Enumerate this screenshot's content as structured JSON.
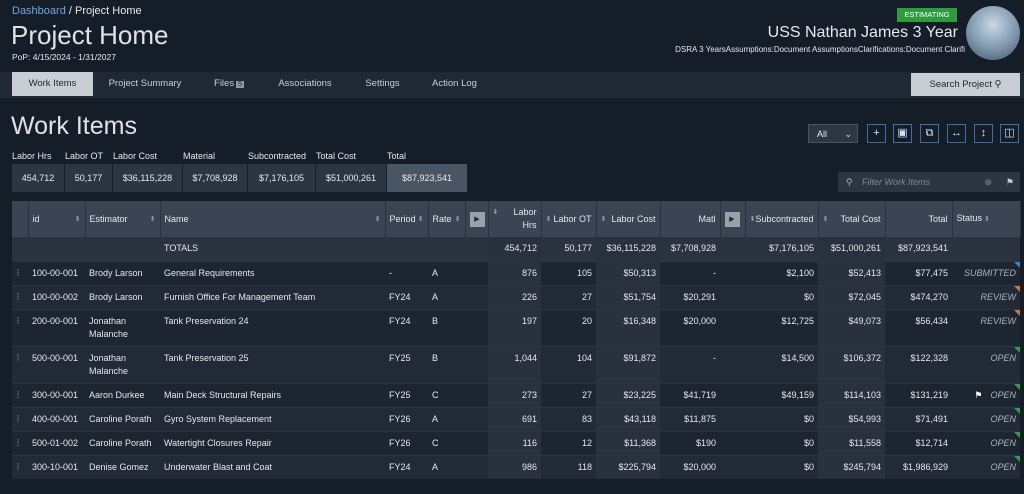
{
  "breadcrumb": [
    "Dashboard",
    "Project Home"
  ],
  "header": {
    "title": "Project Home",
    "pop": "PoP: 4/15/2024 - 1/31/2027",
    "status": "ESTIMATING",
    "ship": "USS Nathan James 3 Year",
    "tags": "DSRA 3 YearsAssumptions:Document AssumptionsClarifications:Document Clarifi"
  },
  "tabs": [
    "Work Items",
    "Project Summary",
    "Files",
    "Associations",
    "Settings",
    "Action Log"
  ],
  "files_count": "5",
  "search_button": "Search Project",
  "section_title": "Work Items",
  "filter_select": "All",
  "summary": {
    "labels": [
      "Labor Hrs",
      "Labor OT",
      "Labor Cost",
      "Material",
      "Subcontracted",
      "Total Cost",
      "Total"
    ],
    "values": [
      "454,712",
      "50,177",
      "$36,115,228",
      "$7,708,928",
      "$7,176,105",
      "$51,000,261",
      "$87,923,541"
    ]
  },
  "filter_placeholder": "Filter Work Items",
  "table": {
    "columns": [
      "id",
      "Estimator",
      "Name",
      "Period",
      "Rate",
      "Labor Hrs",
      "Labor OT",
      "Labor Cost",
      "Matl",
      "Subcontracted",
      "Total Cost",
      "Total",
      "Status"
    ],
    "totals": {
      "label": "TOTALS",
      "values": [
        "454,712",
        "50,177",
        "$36,115,228",
        "$7,708,928",
        "$7,176,105",
        "$51,000,261",
        "$87,923,541"
      ]
    },
    "rows": [
      {
        "cells": [
          "100-00-001",
          "Brody Larson",
          "General Requirements",
          "-",
          "A",
          "876",
          "105",
          "$50,313",
          "-",
          "$2,100",
          "$52,413",
          "$77,475",
          "SUBMITTED"
        ]
      },
      {
        "cells": [
          "100-00-002",
          "Brody Larson",
          "Furnish Office For Management Team",
          "FY24",
          "A",
          "226",
          "27",
          "$51,754",
          "$20,291",
          "$0",
          "$72,045",
          "$474,270",
          "REVIEW"
        ]
      },
      {
        "cells": [
          "200-00-001",
          "Jonathan Malanche",
          "Tank Preservation 24",
          "FY24",
          "B",
          "197",
          "20",
          "$16,348",
          "$20,000",
          "$12,725",
          "$49,073",
          "$56,434",
          "REVIEW"
        ]
      },
      {
        "cells": [
          "500-00-001",
          "Jonathan Malanche",
          "Tank Preservation 25",
          "FY25",
          "B",
          "1,044",
          "104",
          "$91,872",
          "-",
          "$14,500",
          "$106,372",
          "$122,328",
          "OPEN"
        ]
      },
      {
        "cells": [
          "300-00-001",
          "Aaron Durkee",
          "Main Deck Structural Repairs",
          "FY25",
          "C",
          "273",
          "27",
          "$23,225",
          "$41,719",
          "$49,159",
          "$114,103",
          "$131,219",
          "OPEN"
        ],
        "flag": true
      },
      {
        "cells": [
          "400-00-001",
          "Caroline Porath",
          "Gyro System Replacement",
          "FY26",
          "A",
          "691",
          "83",
          "$43,118",
          "$11,875",
          "$0",
          "$54,993",
          "$71,491",
          "OPEN"
        ]
      },
      {
        "cells": [
          "500-01-002",
          "Caroline Porath",
          "Watertight Closures Repair",
          "FY26",
          "C",
          "116",
          "12",
          "$11,368",
          "$190",
          "$0",
          "$11,558",
          "$12,714",
          "OPEN"
        ]
      },
      {
        "cells": [
          "300-10-001",
          "Denise Gomez",
          "Underwater Blast and Coat",
          "FY24",
          "A",
          "986",
          "118",
          "$225,794",
          "$20,000",
          "$0",
          "$245,794",
          "$1,986,929",
          "OPEN"
        ]
      }
    ]
  }
}
